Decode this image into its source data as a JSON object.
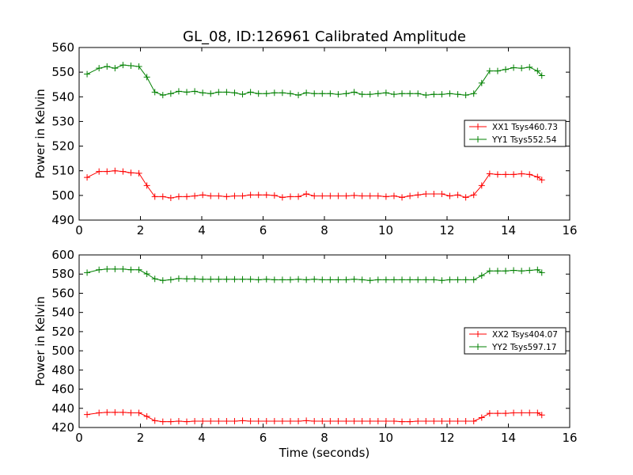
{
  "chart_data": [
    {
      "type": "line",
      "title": "GL_08, ID:126961 Calibrated Amplitude",
      "xlabel": "",
      "ylabel": "Power in Kelvin",
      "xlim": [
        0,
        16
      ],
      "ylim": [
        490,
        560
      ],
      "xticks": [
        "0",
        "2",
        "4",
        "6",
        "8",
        "10",
        "12",
        "14",
        "16"
      ],
      "yticks": [
        "490",
        "500",
        "510",
        "520",
        "530",
        "540",
        "550",
        "560"
      ],
      "legend_position": "center-right",
      "x": [
        0.26,
        0.65,
        0.91,
        1.17,
        1.43,
        1.69,
        1.95,
        2.21,
        2.47,
        2.73,
        2.99,
        3.25,
        3.51,
        3.77,
        4.03,
        4.29,
        4.55,
        4.81,
        5.07,
        5.33,
        5.59,
        5.85,
        6.11,
        6.37,
        6.63,
        6.89,
        7.15,
        7.41,
        7.67,
        7.93,
        8.19,
        8.45,
        8.71,
        8.97,
        9.23,
        9.49,
        9.75,
        10.01,
        10.27,
        10.53,
        10.79,
        11.05,
        11.31,
        11.57,
        11.83,
        12.09,
        12.35,
        12.61,
        12.87,
        13.13,
        13.39,
        13.65,
        13.91,
        14.17,
        14.43,
        14.69,
        14.95,
        15.09
      ],
      "series": [
        {
          "name": "XX1 Tsys460.73",
          "color": "#ff0000",
          "values": [
            507.3,
            509.7,
            509.7,
            510.0,
            509.7,
            509.2,
            509.0,
            504.0,
            499.5,
            499.5,
            499.0,
            499.5,
            499.5,
            499.8,
            500.2,
            499.8,
            499.8,
            499.5,
            499.8,
            499.8,
            500.2,
            500.2,
            500.2,
            500.0,
            499.2,
            499.5,
            499.5,
            500.6,
            499.8,
            499.8,
            499.8,
            499.8,
            499.8,
            500.0,
            499.8,
            499.8,
            499.8,
            499.5,
            499.8,
            499.2,
            499.8,
            500.2,
            500.6,
            500.6,
            500.6,
            499.8,
            500.2,
            499.2,
            500.2,
            504.0,
            508.8,
            508.5,
            508.5,
            508.5,
            508.8,
            508.5,
            507.5,
            506.3
          ]
        },
        {
          "name": "YY1 Tsys552.54",
          "color": "#008000",
          "values": [
            549.2,
            551.6,
            552.3,
            551.6,
            552.9,
            552.6,
            552.3,
            548.0,
            541.9,
            540.7,
            541.3,
            542.2,
            541.9,
            542.2,
            541.6,
            541.3,
            541.9,
            541.9,
            541.6,
            541.0,
            541.9,
            541.3,
            541.3,
            541.6,
            541.6,
            541.3,
            540.7,
            541.6,
            541.3,
            541.3,
            541.3,
            541.0,
            541.3,
            541.9,
            541.0,
            541.0,
            541.3,
            541.6,
            541.0,
            541.3,
            541.3,
            541.3,
            540.7,
            541.0,
            541.0,
            541.3,
            541.0,
            540.7,
            541.3,
            545.6,
            550.5,
            550.5,
            551.1,
            551.8,
            551.6,
            552.0,
            550.5,
            548.6
          ]
        }
      ]
    },
    {
      "type": "line",
      "title": "",
      "xlabel": "Time (seconds)",
      "ylabel": "Power in Kelvin",
      "xlim": [
        0,
        16
      ],
      "ylim": [
        420,
        600
      ],
      "xticks": [
        "0",
        "2",
        "4",
        "6",
        "8",
        "10",
        "12",
        "14",
        "16"
      ],
      "yticks": [
        "420",
        "440",
        "460",
        "480",
        "500",
        "520",
        "540",
        "560",
        "580",
        "600"
      ],
      "legend_position": "center-right",
      "x": [
        0.26,
        0.65,
        0.91,
        1.17,
        1.43,
        1.69,
        1.95,
        2.21,
        2.47,
        2.73,
        2.99,
        3.25,
        3.51,
        3.77,
        4.03,
        4.29,
        4.55,
        4.81,
        5.07,
        5.33,
        5.59,
        5.85,
        6.11,
        6.37,
        6.63,
        6.89,
        7.15,
        7.41,
        7.67,
        7.93,
        8.19,
        8.45,
        8.71,
        8.97,
        9.23,
        9.49,
        9.75,
        10.01,
        10.27,
        10.53,
        10.79,
        11.05,
        11.31,
        11.57,
        11.83,
        12.09,
        12.35,
        12.61,
        12.87,
        13.13,
        13.39,
        13.65,
        13.91,
        14.17,
        14.43,
        14.69,
        14.95,
        15.09
      ],
      "series": [
        {
          "name": "XX2 Tsys404.07",
          "color": "#ff0000",
          "values": [
            433.5,
            435.3,
            435.8,
            435.8,
            435.8,
            435.3,
            435.3,
            431.6,
            427.1,
            426.1,
            426.1,
            426.6,
            426.1,
            426.6,
            426.6,
            426.6,
            426.6,
            426.6,
            426.6,
            427.1,
            426.6,
            426.6,
            426.6,
            426.6,
            426.6,
            426.6,
            426.6,
            427.1,
            426.6,
            426.6,
            426.6,
            426.6,
            426.6,
            426.6,
            426.6,
            426.6,
            426.6,
            426.6,
            426.6,
            426.1,
            426.1,
            426.6,
            426.6,
            426.6,
            426.6,
            426.6,
            426.6,
            426.6,
            426.6,
            430.3,
            434.8,
            434.8,
            434.8,
            435.3,
            435.3,
            435.3,
            435.3,
            433.0
          ]
        },
        {
          "name": "YY2 Tsys597.17",
          "color": "#008000",
          "values": [
            581.5,
            584.5,
            585.2,
            585.2,
            585.2,
            584.5,
            584.5,
            580.2,
            575.0,
            573.4,
            574.1,
            575.3,
            575.0,
            575.0,
            574.6,
            574.6,
            574.6,
            574.6,
            574.6,
            574.6,
            574.6,
            574.1,
            574.6,
            574.1,
            574.1,
            574.1,
            574.6,
            574.1,
            574.6,
            574.1,
            574.1,
            574.1,
            574.1,
            574.6,
            574.1,
            573.4,
            574.1,
            574.1,
            574.1,
            574.1,
            574.1,
            574.1,
            574.1,
            574.1,
            573.4,
            574.1,
            574.1,
            574.1,
            574.1,
            578.4,
            583.3,
            583.3,
            583.3,
            583.9,
            583.3,
            583.9,
            584.5,
            581.5
          ]
        }
      ]
    }
  ]
}
